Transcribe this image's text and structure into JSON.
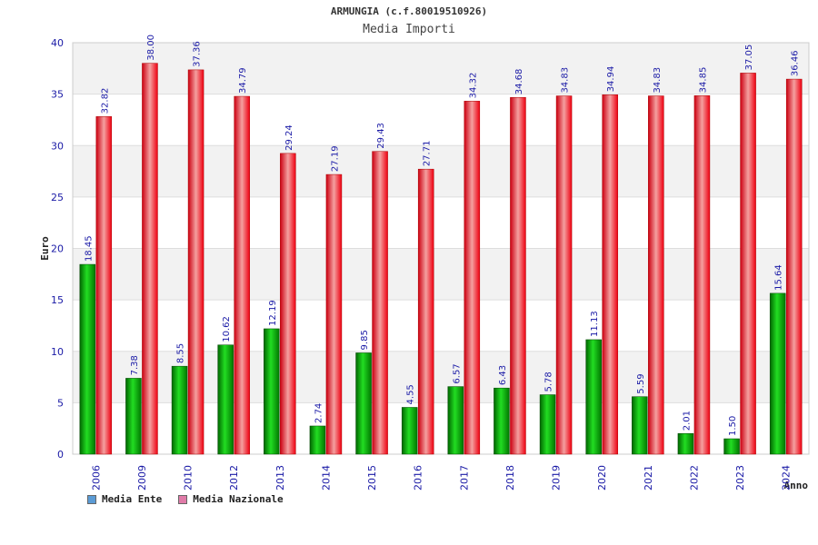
{
  "chart_data": {
    "type": "bar",
    "title": "ARMUNGIA (c.f.80019510926)",
    "subtitle": "Media Importi",
    "xlabel": "Anno",
    "ylabel": "Euro",
    "ylim": [
      0,
      40
    ],
    "yticks": [
      0,
      5,
      10,
      15,
      20,
      25,
      30,
      35,
      40
    ],
    "grid": true,
    "legend_position": "bottom-left",
    "categories": [
      "2006",
      "2009",
      "2010",
      "2012",
      "2013",
      "2014",
      "2015",
      "2016",
      "2017",
      "2018",
      "2019",
      "2020",
      "2021",
      "2022",
      "2023",
      "2024"
    ],
    "series": [
      {
        "name": "Media Ente",
        "legend_color": "#5b9bd5",
        "bar_color": "#00aa00",
        "values": [
          18.45,
          7.38,
          8.55,
          10.62,
          12.19,
          2.74,
          9.85,
          4.55,
          6.57,
          6.43,
          5.78,
          11.13,
          5.59,
          2.01,
          1.5,
          15.64
        ],
        "labels": [
          "18.45",
          "7.38",
          "8.55",
          "10.62",
          "12.19",
          "2.74",
          "9.85",
          "4.55",
          "6.57",
          "6.43",
          "5.78",
          "11.13",
          "5.59",
          "2.01",
          "1.50",
          "15.64"
        ]
      },
      {
        "name": "Media Nazionale",
        "legend_color": "#e07ba8",
        "bar_color": "#ee1122",
        "values": [
          32.82,
          38.0,
          37.36,
          34.79,
          29.24,
          27.19,
          29.43,
          27.71,
          34.32,
          34.68,
          34.83,
          34.94,
          34.83,
          34.85,
          37.05,
          36.46
        ],
        "labels": [
          "32.82",
          "38.00",
          "37.36",
          "34.79",
          "29.24",
          "27.19",
          "29.43",
          "27.71",
          "34.32",
          "34.68",
          "34.83",
          "34.94",
          "34.83",
          "34.85",
          "37.05",
          "36.46"
        ]
      }
    ]
  }
}
